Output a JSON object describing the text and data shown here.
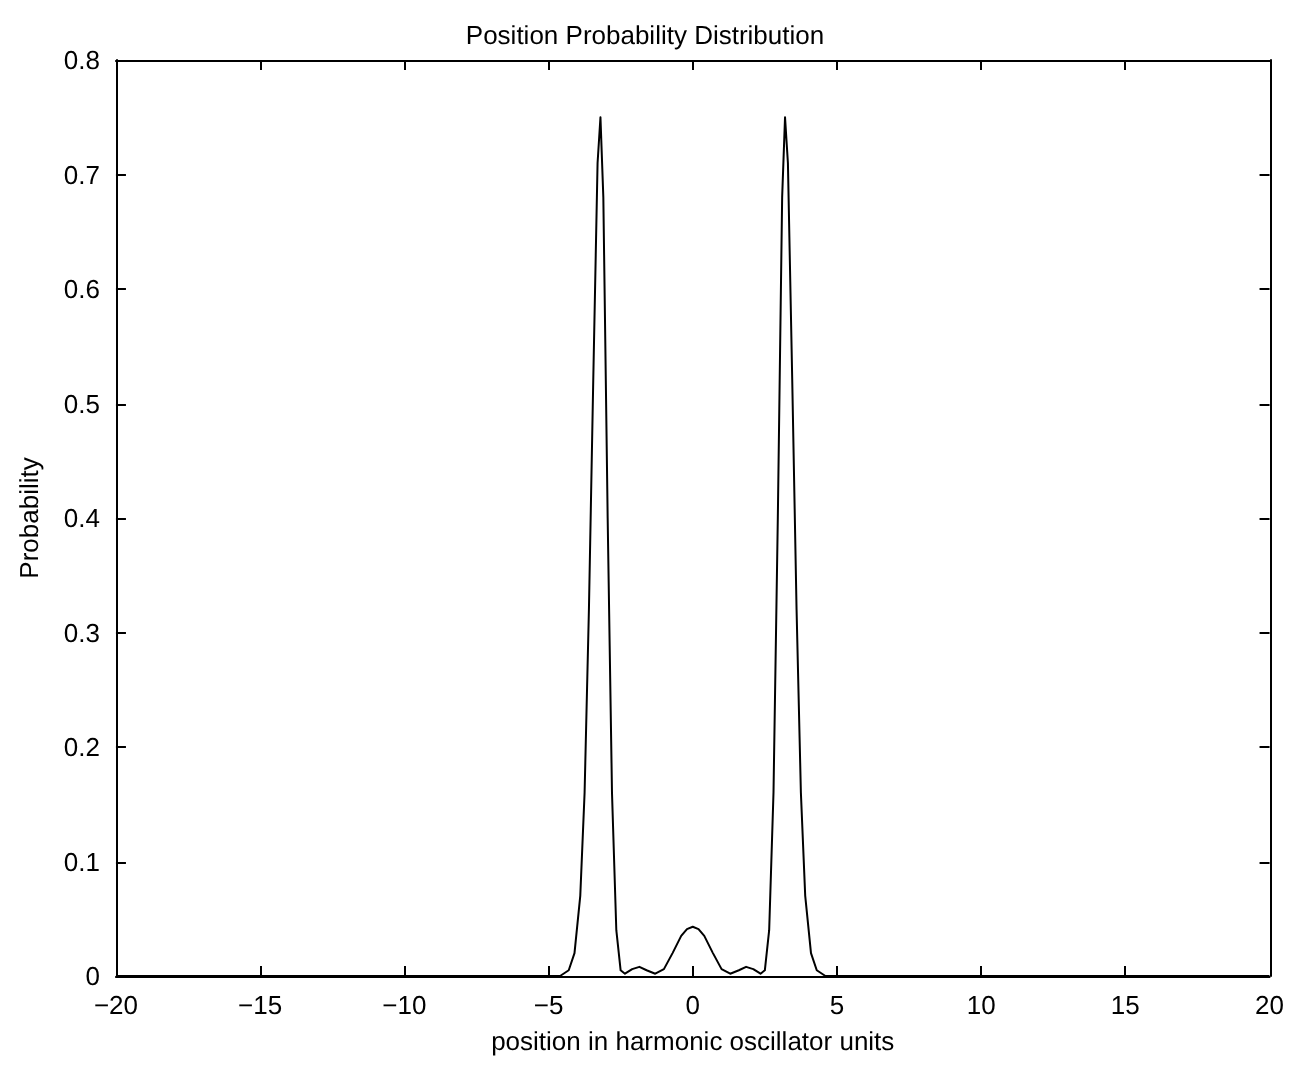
{
  "chart_data": {
    "type": "line",
    "title": "Position Probability Distribution",
    "xlabel": "position in harmonic oscillator units",
    "ylabel": "Probability",
    "series": [
      {
        "color": "#000000",
        "x": [
          -20,
          -4.6,
          -4.3,
          -4.1,
          -3.9,
          -3.75,
          -3.6,
          -3.45,
          -3.3,
          -3.2,
          -3.1,
          -2.95,
          -2.8,
          -2.65,
          -2.5,
          -2.35,
          -2.1,
          -1.85,
          -1.6,
          -1.3,
          -1.0,
          -0.7,
          -0.4,
          -0.2,
          0,
          0.2,
          0.4,
          0.7,
          1.0,
          1.3,
          1.6,
          1.85,
          2.1,
          2.35,
          2.5,
          2.65,
          2.8,
          2.95,
          3.1,
          3.2,
          3.3,
          3.45,
          3.6,
          3.75,
          3.9,
          4.1,
          4.3,
          4.6,
          20
        ],
        "values": [
          0,
          0,
          0.005,
          0.02,
          0.07,
          0.16,
          0.32,
          0.52,
          0.71,
          0.75,
          0.68,
          0.4,
          0.16,
          0.04,
          0.005,
          0.002,
          0.006,
          0.008,
          0.005,
          0.002,
          0.006,
          0.02,
          0.035,
          0.041,
          0.043,
          0.041,
          0.035,
          0.02,
          0.006,
          0.002,
          0.005,
          0.008,
          0.006,
          0.002,
          0.005,
          0.04,
          0.16,
          0.4,
          0.68,
          0.75,
          0.71,
          0.52,
          0.32,
          0.16,
          0.07,
          0.02,
          0.005,
          0,
          0
        ]
      }
    ],
    "xlim": [
      -20,
      20
    ],
    "xticks": [
      -20,
      -15,
      -10,
      -5,
      0,
      5,
      10,
      15,
      20
    ],
    "ylim": [
      0,
      0.8
    ],
    "yticks": [
      0,
      0.1,
      0.2,
      0.3,
      0.4,
      0.5,
      0.6,
      0.7,
      0.8
    ],
    "grid": false,
    "legend": false,
    "marker": "none",
    "line_style": "solid"
  }
}
